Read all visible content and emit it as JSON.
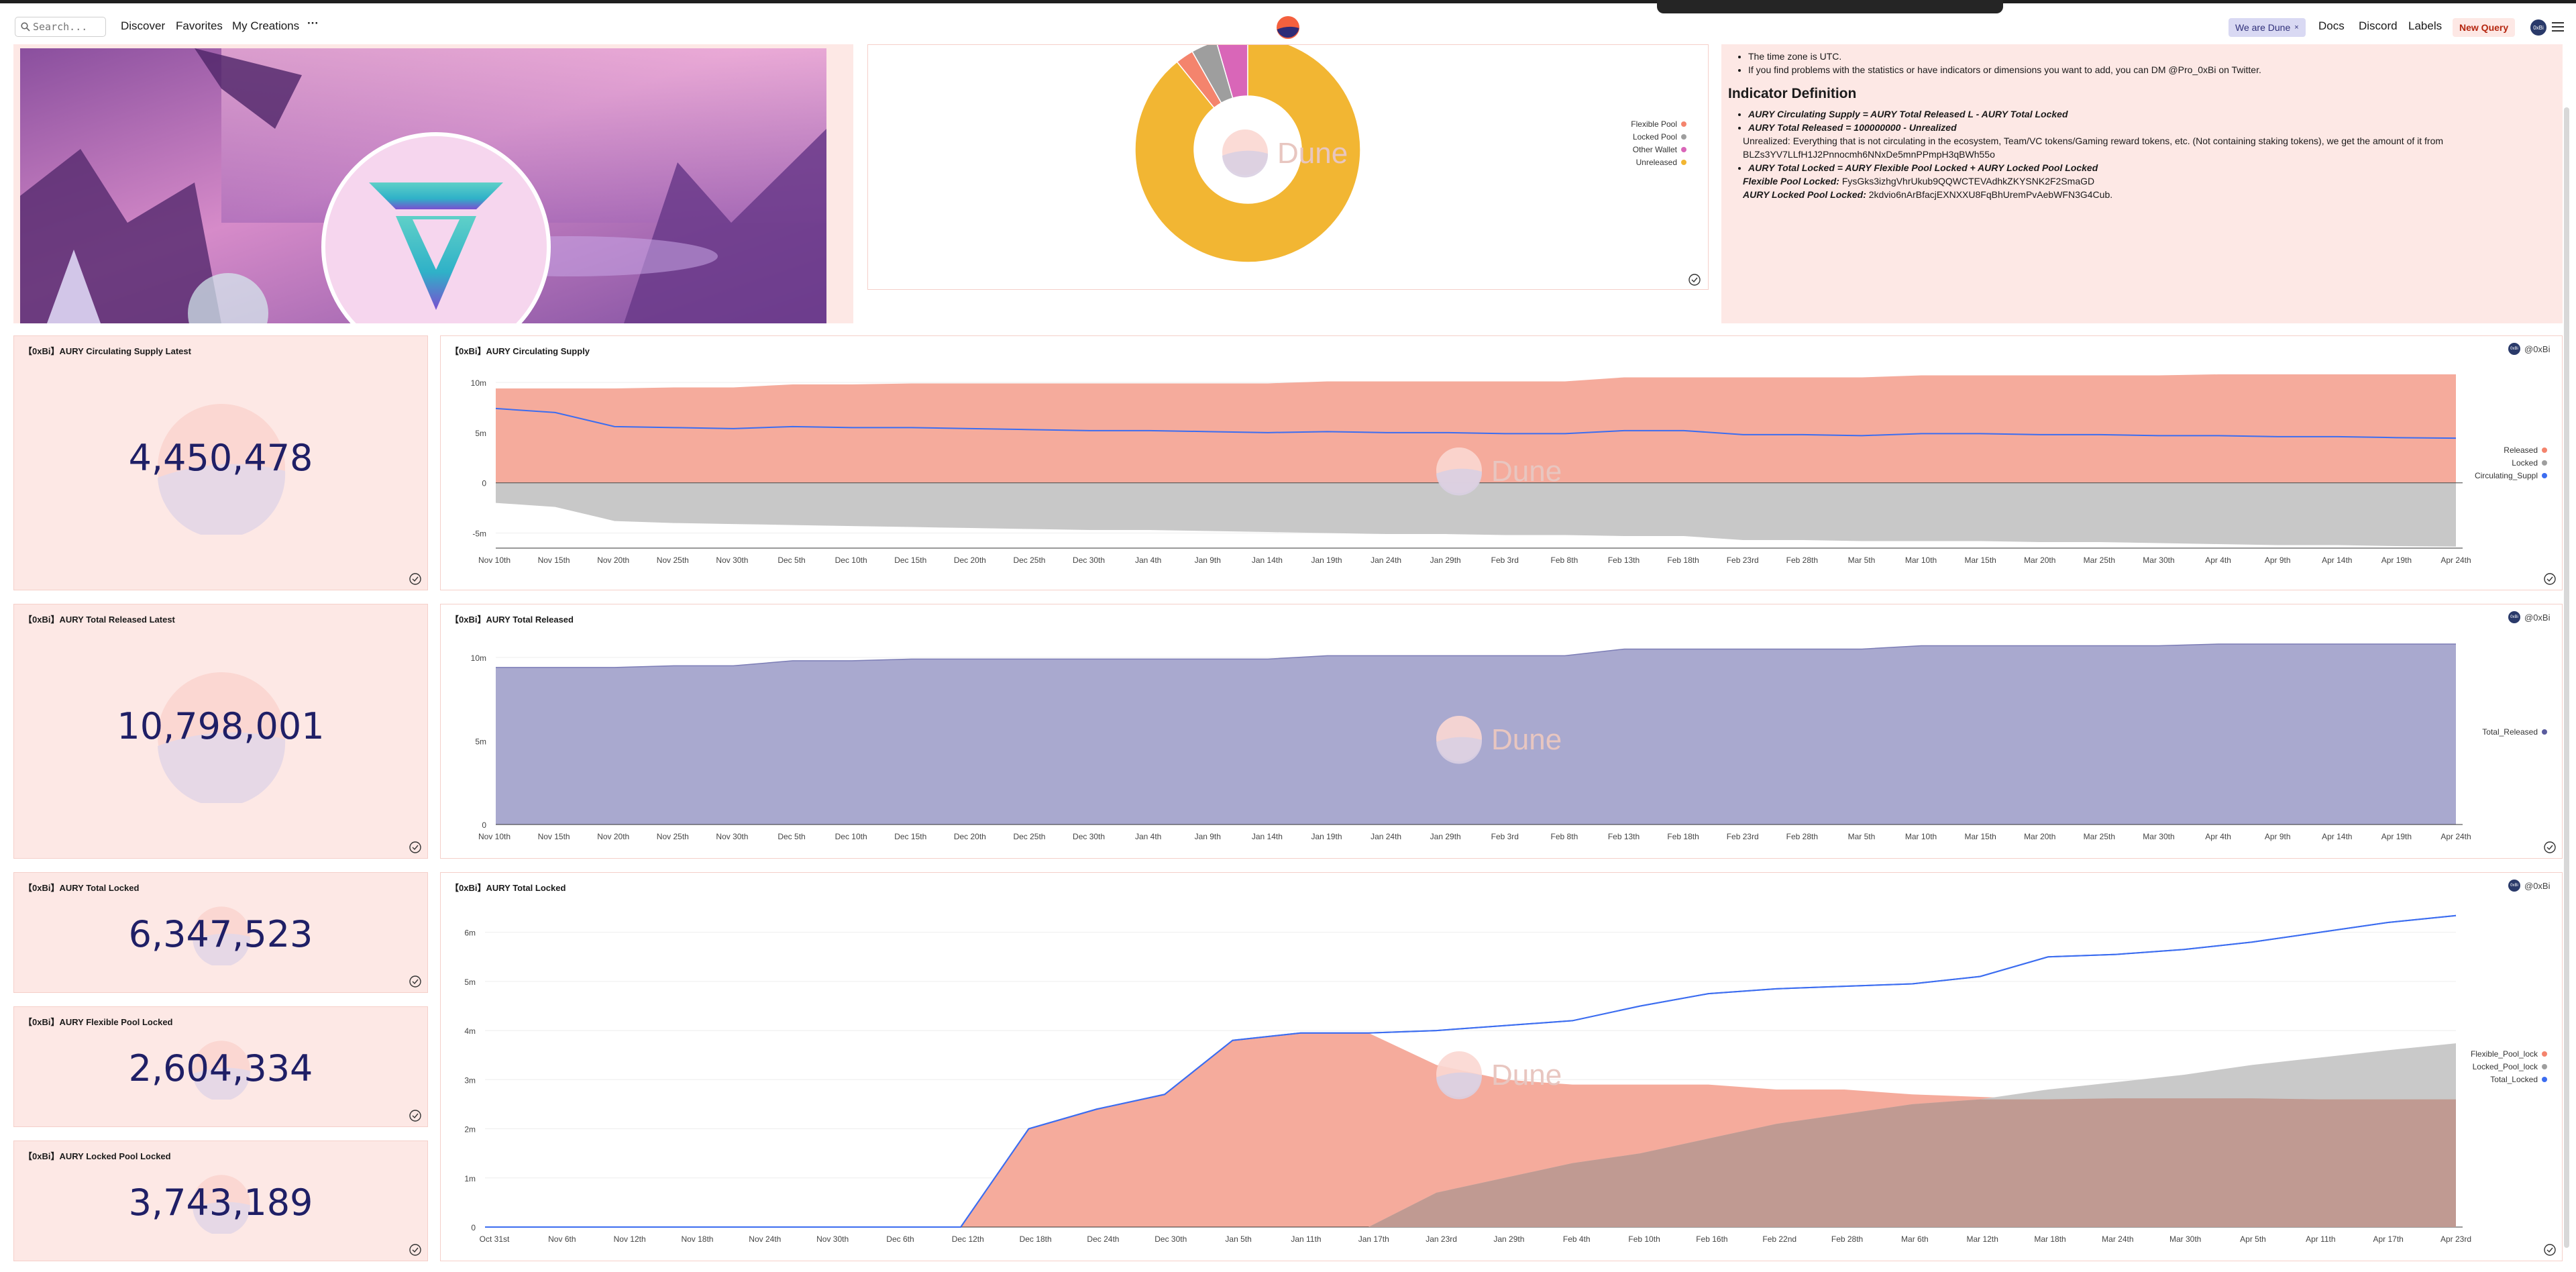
{
  "nav": {
    "search_placeholder": "Search...",
    "discover": "Discover",
    "favorites": "Favorites",
    "my_creations": "My Creations",
    "more": "···",
    "team": "We are Dune",
    "docs": "Docs",
    "discord": "Discord",
    "labels": "Labels",
    "new_query": "New Query",
    "avatar_text": "0xBi"
  },
  "colors": {
    "accent": "#f4846d",
    "purple": "#9e9fcb",
    "blue": "#3c6df0",
    "grey": "#c4c4c4",
    "brown": "#c09a92",
    "pink_bg": "#fde8e5",
    "value": "#1f1f66"
  },
  "pie": {
    "legend": [
      {
        "label": "Flexible Pool",
        "color": "#f4846d"
      },
      {
        "label": "Locked Pool",
        "color": "#9e9e9e"
      },
      {
        "label": "Other Wallet",
        "color": "#d966b8"
      },
      {
        "label": "Unreleased",
        "color": "#f2b633"
      }
    ]
  },
  "text_panel": {
    "bullets_top": [
      "The time zone is UTC.",
      "If you find problems with the statistics or have indicators or dimensions you want to add, you can DM @Pro_0xBi on Twitter."
    ],
    "heading": "Indicator Definition",
    "def1": "AURY Circulating Supply = AURY Total Released L - AURY Total Locked",
    "def2": "AURY Total Released = 100000000 - Unrealized",
    "unrealized": "Unrealized: Everything that is not circulating in the ecosystem, Team/VC tokens/Gaming reward tokens, etc. (Not containing staking tokens), we get the amount of it from BLZs3YV7LLfH1J2Pnnocmh6NNxDe5mnPPmpH3qBWh55o",
    "def3": "AURY Total Locked = AURY Flexible Pool Locked + AURY Locked Pool Locked",
    "flex_label": "Flexible Pool Locked:",
    "flex_addr": "FysGks3izhgVhrUkub9QQWCTEVAdhkZKYSNK2F2SmaGD",
    "locked_label": "AURY Locked Pool Locked:",
    "locked_addr": "2kdvio6nArBfacjEXNXXU8FqBhUremPvAebWFN3G4Cub."
  },
  "counters": [
    {
      "title": "【0xBi】AURY Circulating Supply Latest",
      "value": "4,450,478"
    },
    {
      "title": "【0xBi】AURY Total Released Latest",
      "value": "10,798,001"
    },
    {
      "title": "【0xBi】AURY Total Locked",
      "value": "6,347,523"
    },
    {
      "title": "【0xBi】AURY Flexible Pool Locked",
      "value": "2,604,334"
    },
    {
      "title": "【0xBi】AURY Locked Pool Locked",
      "value": "3,743,189"
    }
  ],
  "charts": {
    "circ": {
      "title": "【0xBi】AURY Circulating Supply",
      "author": "@0xBi",
      "watermark": "Dune",
      "legend": [
        {
          "label": "Released",
          "color": "#f4846d"
        },
        {
          "label": "Locked",
          "color": "#9e9e9e"
        },
        {
          "label": "Circulating_Suppl",
          "color": "#3c6df0"
        }
      ],
      "y_ticks": [
        "10m",
        "5m",
        "0",
        "-5m"
      ],
      "x_ticks": [
        "Nov 10th",
        "Nov 15th",
        "Nov 20th",
        "Nov 25th",
        "Nov 30th",
        "Dec 5th",
        "Dec 10th",
        "Dec 15th",
        "Dec 20th",
        "Dec 25th",
        "Dec 30th",
        "Jan 4th",
        "Jan 9th",
        "Jan 14th",
        "Jan 19th",
        "Jan 24th",
        "Jan 29th",
        "Feb 3rd",
        "Feb 8th",
        "Feb 13th",
        "Feb 18th",
        "Feb 23rd",
        "Feb 28th",
        "Mar 5th",
        "Mar 10th",
        "Mar 15th",
        "Mar 20th",
        "Mar 25th",
        "Mar 30th",
        "Apr 4th",
        "Apr 9th",
        "Apr 14th",
        "Apr 19th",
        "Apr 24th"
      ]
    },
    "released": {
      "title": "【0xBi】AURY Total Released",
      "author": "@0xBi",
      "watermark": "Dune",
      "legend": [
        {
          "label": "Total_Released",
          "color": "#5a5c9e"
        }
      ],
      "y_ticks": [
        "10m",
        "5m",
        "0"
      ],
      "x_ticks": [
        "Nov 10th",
        "Nov 15th",
        "Nov 20th",
        "Nov 25th",
        "Nov 30th",
        "Dec 5th",
        "Dec 10th",
        "Dec 15th",
        "Dec 20th",
        "Dec 25th",
        "Dec 30th",
        "Jan 4th",
        "Jan 9th",
        "Jan 14th",
        "Jan 19th",
        "Jan 24th",
        "Jan 29th",
        "Feb 3rd",
        "Feb 8th",
        "Feb 13th",
        "Feb 18th",
        "Feb 23rd",
        "Feb 28th",
        "Mar 5th",
        "Mar 10th",
        "Mar 15th",
        "Mar 20th",
        "Mar 25th",
        "Mar 30th",
        "Apr 4th",
        "Apr 9th",
        "Apr 14th",
        "Apr 19th",
        "Apr 24th"
      ]
    },
    "locked": {
      "title": "【0xBi】AURY Total Locked",
      "author": "@0xBi",
      "watermark": "Dune",
      "legend": [
        {
          "label": "Flexible_Pool_lock",
          "color": "#f4846d"
        },
        {
          "label": "Locked_Pool_lock",
          "color": "#9e9e9e"
        },
        {
          "label": "Total_Locked",
          "color": "#3c6df0"
        }
      ],
      "y_ticks": [
        "6m",
        "5m",
        "4m",
        "3m",
        "2m",
        "1m",
        "0"
      ],
      "x_ticks": [
        "Oct 31st",
        "Nov 6th",
        "Nov 12th",
        "Nov 18th",
        "Nov 24th",
        "Nov 30th",
        "Dec 6th",
        "Dec 12th",
        "Dec 18th",
        "Dec 24th",
        "Dec 30th",
        "Jan 5th",
        "Jan 11th",
        "Jan 17th",
        "Jan 23rd",
        "Jan 29th",
        "Feb 4th",
        "Feb 10th",
        "Feb 16th",
        "Feb 22nd",
        "Feb 28th",
        "Mar 6th",
        "Mar 12th",
        "Mar 18th",
        "Mar 24th",
        "Mar 30th",
        "Apr 5th",
        "Apr 11th",
        "Apr 17th",
        "Apr 23rd"
      ]
    }
  },
  "chart_data": [
    {
      "type": "area",
      "title": "【0xBi】AURY Circulating Supply",
      "x_range": [
        "Nov 8th",
        "Apr 24th"
      ],
      "ylim": [
        -6500000,
        11000000
      ],
      "series": [
        {
          "name": "Released",
          "values": [
            9400000,
            9400000,
            9400000,
            9500000,
            9500000,
            9800000,
            9800000,
            9900000,
            9900000,
            9900000,
            9900000,
            9900000,
            9900000,
            9900000,
            10100000,
            10100000,
            10100000,
            10100000,
            10100000,
            10500000,
            10500000,
            10500000,
            10500000,
            10500000,
            10700000,
            10700000,
            10700000,
            10700000,
            10700000,
            10800000,
            10800000,
            10800000,
            10800000,
            10800000
          ]
        },
        {
          "name": "Locked",
          "values": [
            -2000000,
            -2400000,
            -3800000,
            -4000000,
            -4100000,
            -4200000,
            -4300000,
            -4400000,
            -4500000,
            -4600000,
            -4700000,
            -4700000,
            -4800000,
            -4900000,
            -5000000,
            -5100000,
            -5100000,
            -5200000,
            -5200000,
            -5300000,
            -5300000,
            -5700000,
            -5700000,
            -5800000,
            -5800000,
            -5800000,
            -5900000,
            -5900000,
            -6000000,
            -6100000,
            -6200000,
            -6200000,
            -6300000,
            -6350000
          ]
        },
        {
          "name": "Circulating_Suppl",
          "values": [
            7400000,
            7000000,
            5600000,
            5500000,
            5400000,
            5600000,
            5500000,
            5500000,
            5400000,
            5300000,
            5200000,
            5200000,
            5100000,
            5000000,
            5100000,
            5000000,
            5000000,
            4900000,
            4900000,
            5200000,
            5200000,
            4800000,
            4800000,
            4700000,
            4900000,
            4900000,
            4800000,
            4800000,
            4700000,
            4700000,
            4600000,
            4600000,
            4500000,
            4450000
          ]
        }
      ]
    },
    {
      "type": "area",
      "title": "【0xBi】AURY Total Released",
      "x_range": [
        "Nov 8th",
        "Apr 24th"
      ],
      "ylim": [
        0,
        11000000
      ],
      "series": [
        {
          "name": "Total_Released",
          "values": [
            9400000,
            9400000,
            9400000,
            9500000,
            9500000,
            9800000,
            9800000,
            9900000,
            9900000,
            9900000,
            9900000,
            9900000,
            9900000,
            9900000,
            10100000,
            10100000,
            10100000,
            10100000,
            10100000,
            10500000,
            10500000,
            10500000,
            10500000,
            10500000,
            10700000,
            10700000,
            10700000,
            10700000,
            10700000,
            10800000,
            10800000,
            10800000,
            10800000,
            10800000
          ]
        }
      ]
    },
    {
      "type": "area",
      "title": "【0xBi】AURY Total Locked",
      "x_range": [
        "Oct 31st",
        "Apr 23rd"
      ],
      "ylim": [
        0,
        6500000
      ],
      "series": [
        {
          "name": "Flexible_Pool_lock",
          "values": [
            0,
            0,
            0,
            0,
            0,
            0,
            0,
            0,
            2000000,
            2400000,
            2700000,
            3800000,
            3950000,
            3950000,
            3300000,
            3000000,
            2900000,
            2900000,
            2900000,
            2800000,
            2800000,
            2700000,
            2650000,
            2600000,
            2620000,
            2620000,
            2620000,
            2600000,
            2600000,
            2600000
          ]
        },
        {
          "name": "Locked_Pool_lock",
          "values": [
            0,
            0,
            0,
            0,
            0,
            0,
            0,
            0,
            0,
            0,
            0,
            0,
            0,
            0,
            700000,
            1000000,
            1300000,
            1500000,
            1800000,
            2100000,
            2300000,
            2500000,
            2600000,
            2800000,
            2950000,
            3100000,
            3300000,
            3450000,
            3600000,
            3740000
          ]
        },
        {
          "name": "Total_Locked",
          "values": [
            0,
            0,
            0,
            0,
            0,
            0,
            0,
            0,
            2000000,
            2400000,
            2700000,
            3800000,
            3950000,
            3950000,
            4000000,
            4100000,
            4200000,
            4500000,
            4750000,
            4850000,
            4900000,
            4950000,
            5100000,
            5500000,
            5550000,
            5650000,
            5800000,
            6000000,
            6200000,
            6340000
          ]
        }
      ]
    },
    {
      "type": "pie",
      "title": "",
      "categories": [
        "Flexible Pool",
        "Locked Pool",
        "Other Wallet",
        "Unreleased"
      ],
      "values": [
        2.6,
        3.7,
        4.5,
        89.2
      ]
    }
  ]
}
